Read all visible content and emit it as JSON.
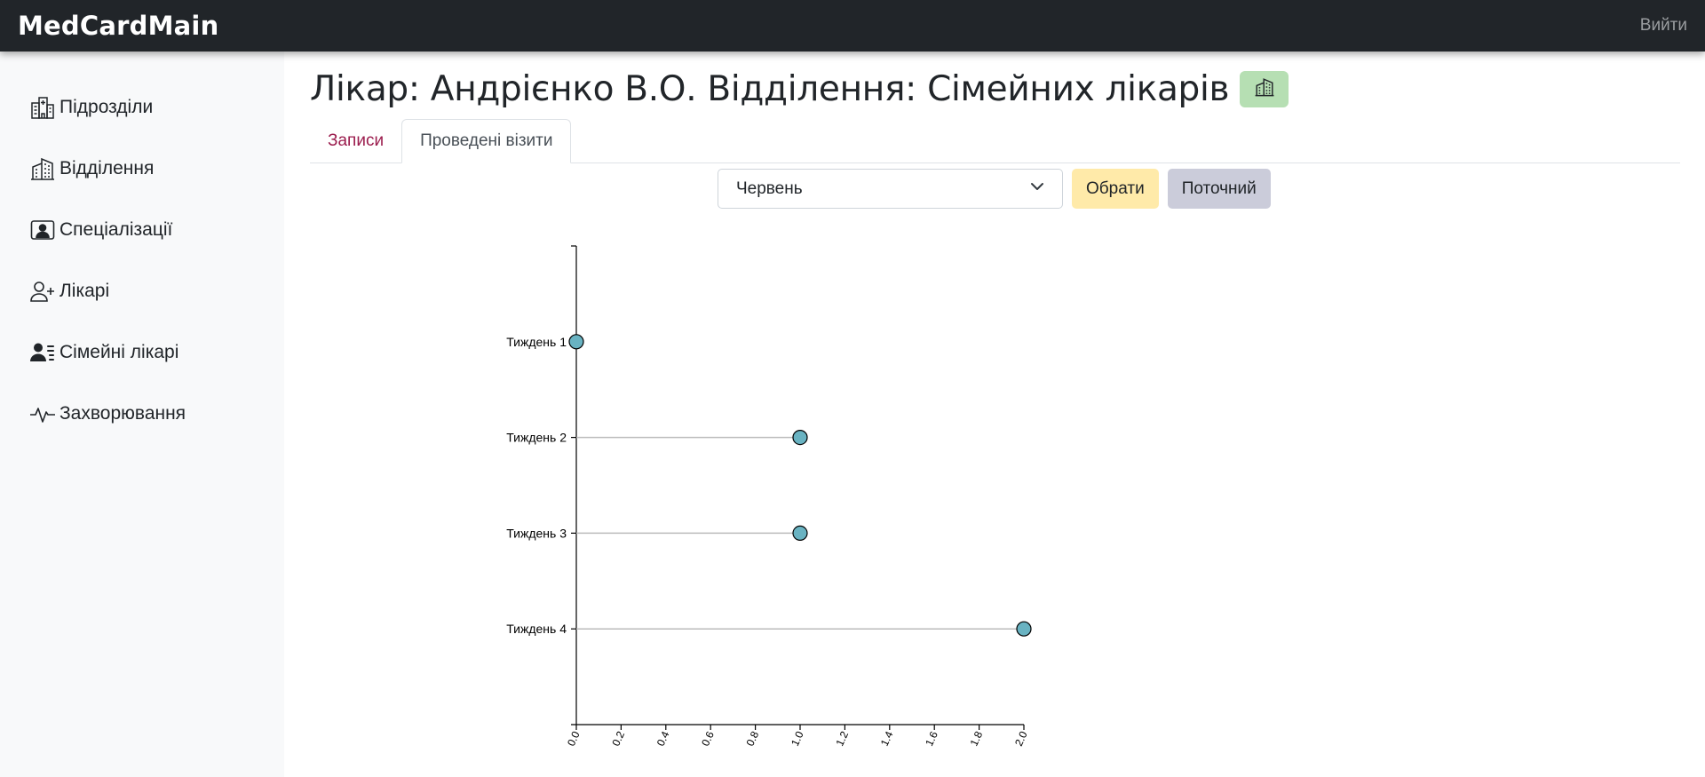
{
  "navbar": {
    "brand": "MedCardMain",
    "logout_label": "Вийти"
  },
  "sidebar": {
    "items": [
      {
        "label": "Підрозділи",
        "icon": "hospital-icon"
      },
      {
        "label": "Відділення",
        "icon": "building-icon"
      },
      {
        "label": "Спеціалізації",
        "icon": "person-badge-icon"
      },
      {
        "label": "Лікарі",
        "icon": "person-plus-icon"
      },
      {
        "label": "Сімейні лікарі",
        "icon": "person-lines-icon"
      },
      {
        "label": "Захворювання",
        "icon": "pulse-icon"
      }
    ]
  },
  "header": {
    "title": "Лікар: Андрієнко В.О. Відділення: Сімейних лікарів",
    "badge_icon": "building-icon",
    "badge_color": "#b6dfb3"
  },
  "tabs": [
    {
      "label": "Записи",
      "active": false
    },
    {
      "label": "Проведені візити",
      "active": true
    }
  ],
  "controls": {
    "month_select": {
      "value": "Червень"
    },
    "choose_label": "Обрати",
    "current_label": "Поточний"
  },
  "chart_data": {
    "type": "lollipop",
    "orientation": "horizontal",
    "categories": [
      "Тиждень 1",
      "Тиждень 2",
      "Тиждень 3",
      "Тиждень 4"
    ],
    "values": [
      0,
      1,
      1,
      2
    ],
    "xlim": [
      0,
      2
    ],
    "xticks": [
      "0.0",
      "0.2",
      "0.4",
      "0.6",
      "0.8",
      "1.0",
      "1.2",
      "1.4",
      "1.6",
      "1.8",
      "2.0"
    ],
    "xlabel": "",
    "ylabel": "",
    "title": "",
    "grid": false,
    "colors": {
      "marker_fill": "#69b3c2",
      "marker_stroke": "#000000",
      "stem": "#bbbbbb"
    }
  }
}
